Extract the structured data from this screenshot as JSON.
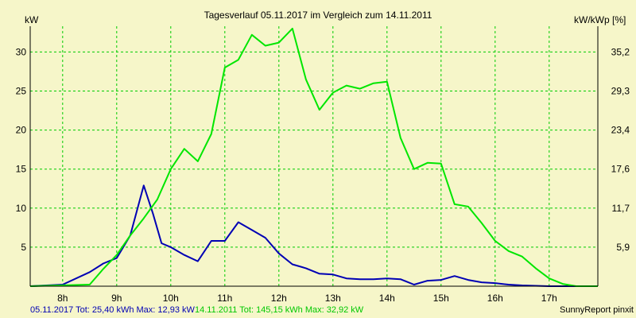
{
  "chart_data": {
    "type": "line",
    "title": "Tagesverlauf 05.11.2017 im Vergleich zum 14.11.2011",
    "ylabel_left": "kW",
    "ylabel_right": "kW/kWp [%]",
    "xlim": [
      7.4,
      17.9
    ],
    "ylim": [
      0,
      33.3
    ],
    "x_ticks": [
      8,
      9,
      10,
      11,
      12,
      13,
      14,
      15,
      16,
      17
    ],
    "x_tick_labels": [
      "8h",
      "9h",
      "10h",
      "11h",
      "12h",
      "13h",
      "14h",
      "15h",
      "16h",
      "17h"
    ],
    "y_ticks_left": [
      5,
      10,
      15,
      20,
      25,
      30
    ],
    "y_tick_labels_left": [
      "5",
      "10",
      "15",
      "20",
      "25",
      "30"
    ],
    "y_ticks_right": [
      5,
      10,
      15,
      20,
      25,
      30
    ],
    "y_tick_labels_right": [
      "5,9",
      "11,7",
      "17,6",
      "23,4",
      "29,3",
      "35,2"
    ],
    "grid": true,
    "colors": {
      "background": "#f6f6c9",
      "plot_background": "#f6f6c9",
      "grid": "#00cc00",
      "series_2017": "#0000b4",
      "series_2011": "#00e600"
    },
    "series": [
      {
        "id": "s2017",
        "x": [
          7.4,
          8.0,
          8.5,
          8.75,
          9.0,
          9.25,
          9.5,
          9.67,
          9.83,
          10.0,
          10.25,
          10.5,
          10.75,
          11.0,
          11.25,
          11.5,
          11.75,
          12.0,
          12.25,
          12.5,
          12.75,
          13.0,
          13.25,
          13.5,
          13.75,
          14.0,
          14.25,
          14.5,
          14.75,
          15.0,
          15.25,
          15.5,
          15.75,
          16.0,
          16.25,
          16.5,
          17.0,
          17.5
        ],
        "y": [
          0,
          0.2,
          1.8,
          2.9,
          3.6,
          6.5,
          12.9,
          9.3,
          5.5,
          5.0,
          4.0,
          3.2,
          5.8,
          5.8,
          8.2,
          7.2,
          6.2,
          4.2,
          2.8,
          2.3,
          1.6,
          1.5,
          1.0,
          0.9,
          0.9,
          1.0,
          0.9,
          0.2,
          0.7,
          0.8,
          1.3,
          0.8,
          0.5,
          0.4,
          0.2,
          0.1,
          0,
          0
        ]
      },
      {
        "id": "s2011",
        "x": [
          7.4,
          8.5,
          8.75,
          9.0,
          9.25,
          9.5,
          9.75,
          10.0,
          10.25,
          10.5,
          10.75,
          11.0,
          11.25,
          11.5,
          11.75,
          12.0,
          12.25,
          12.5,
          12.75,
          13.0,
          13.25,
          13.5,
          13.75,
          14.0,
          14.25,
          14.5,
          14.75,
          15.0,
          15.25,
          15.5,
          15.75,
          16.0,
          16.25,
          16.5,
          16.75,
          17.0,
          17.25,
          17.5,
          17.9
        ],
        "y": [
          0,
          0.2,
          2.2,
          4.0,
          6.5,
          8.7,
          11.1,
          15.0,
          17.6,
          16.0,
          19.5,
          28.0,
          29.0,
          32.2,
          30.8,
          31.2,
          33.0,
          26.5,
          22.6,
          24.8,
          25.7,
          25.3,
          26.0,
          26.2,
          19.0,
          15.0,
          15.8,
          15.7,
          10.5,
          10.2,
          8.1,
          5.8,
          4.5,
          3.8,
          2.3,
          1.0,
          0.3,
          0,
          0
        ]
      }
    ],
    "legend": [
      {
        "text": "05.11.2017 Tot: 25,40 kWh Max: 12,93 kW",
        "color": "#0000b4"
      },
      {
        "text": "14.11.2011 Tot: 145,15 kWh Max: 32,92 kW",
        "color": "#00e600"
      }
    ],
    "credit": "SunnyReport pinxit"
  }
}
